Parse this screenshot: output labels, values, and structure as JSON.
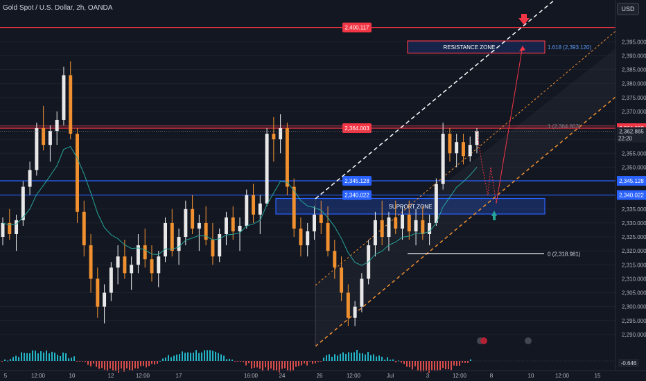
{
  "header": {
    "title": "Gold Spot / U.S. Dollar, 2h, OANDA",
    "currency": "USD"
  },
  "colors": {
    "background": "#131722",
    "up": "#e8e8e8",
    "down": "#f0902f",
    "ma": "#26a69a",
    "red_level": "#f23645",
    "blue_level": "#2962ff",
    "white_level": "#ffffff",
    "orange_channel": "#f0902f",
    "vol_up": "#26c6da",
    "vol_down": "#ef5350"
  },
  "chart_data": {
    "type": "candlestick",
    "ylim": [
      2287,
      2405
    ],
    "y_ticks": [
      "2,395.000",
      "2,390.000",
      "2,385.000",
      "2,380.000",
      "2,375.000",
      "2,370.000",
      "2,365.000",
      "2,360.000",
      "2,355.000",
      "2,350.000",
      "2,345.000",
      "2,340.000",
      "2,335.000",
      "2,330.000",
      "2,325.000",
      "2,320.000",
      "2,315.000",
      "2,310.000",
      "2,305.000",
      "2,300.000",
      "2,295.000",
      "2,290.000"
    ],
    "y_tick_values": [
      2395,
      2390,
      2385,
      2380,
      2375,
      2370,
      2365,
      2360,
      2355,
      2350,
      2345,
      2340,
      2335,
      2330,
      2325,
      2320,
      2315,
      2310,
      2305,
      2300,
      2295,
      2290
    ],
    "x_tick_labels": [
      "5",
      "12:00",
      "10",
      "12",
      "12:00",
      "17",
      "16:00",
      "24",
      "26",
      "12:00",
      "Jul",
      "3",
      "12:00",
      "8",
      "10",
      "12:00",
      "15"
    ],
    "levels": [
      {
        "price": 2400.117,
        "label": "2,400.117",
        "color": "red"
      },
      {
        "price": 2364.003,
        "label": "2,364.003",
        "color": "red"
      },
      {
        "price": 2345.128,
        "label": "2,345.128",
        "color": "blue"
      },
      {
        "price": 2340.022,
        "label": "2,340.022",
        "color": "blue"
      }
    ],
    "axis_tags": [
      {
        "price": 2364.003,
        "label": "2,364.003",
        "color": "red"
      },
      {
        "price": 2345.128,
        "label": "2,345.128",
        "color": "blue"
      },
      {
        "price": 2340.022,
        "label": "2,340.022",
        "color": "blue"
      }
    ],
    "current_price": {
      "price": 2362.865,
      "label": "2,362.865",
      "countdown": "22:20"
    },
    "zones": [
      {
        "name": "RESISTANCE ZONE",
        "top": 2394.3,
        "bottom": 2391.9
      },
      {
        "name": "SUPPORT ZONE",
        "top": 2337.8,
        "bottom": 2334.2
      }
    ],
    "fib_labels": [
      {
        "price": 2393.12,
        "text": "1.618 (2,393.120)"
      },
      {
        "price": 2364.803,
        "text": "1 (2,364.803)"
      },
      {
        "price": 2318.981,
        "text": "0 (2,318.981)"
      }
    ],
    "macd_value": "-0.646",
    "candles": [
      [
        2325,
        2332,
        2322,
        2330
      ],
      [
        2330,
        2335,
        2324,
        2326
      ],
      [
        2326,
        2333,
        2320,
        2331
      ],
      [
        2331,
        2345,
        2329,
        2343
      ],
      [
        2343,
        2352,
        2340,
        2349
      ],
      [
        2349,
        2366,
        2347,
        2364
      ],
      [
        2364,
        2372,
        2356,
        2358
      ],
      [
        2358,
        2365,
        2352,
        2363
      ],
      [
        2363,
        2370,
        2358,
        2367
      ],
      [
        2367,
        2386,
        2365,
        2383
      ],
      [
        2383,
        2388,
        2360,
        2362
      ],
      [
        2362,
        2364,
        2330,
        2334
      ],
      [
        2334,
        2338,
        2318,
        2322
      ],
      [
        2322,
        2326,
        2305,
        2310
      ],
      [
        2310,
        2314,
        2296,
        2300
      ],
      [
        2300,
        2308,
        2294,
        2305
      ],
      [
        2305,
        2316,
        2302,
        2314
      ],
      [
        2314,
        2322,
        2308,
        2318
      ],
      [
        2318,
        2324,
        2310,
        2312
      ],
      [
        2312,
        2318,
        2306,
        2315
      ],
      [
        2315,
        2326,
        2312,
        2322
      ],
      [
        2322,
        2328,
        2314,
        2317
      ],
      [
        2317,
        2322,
        2309,
        2312
      ],
      [
        2312,
        2320,
        2307,
        2318
      ],
      [
        2318,
        2332,
        2316,
        2330
      ],
      [
        2330,
        2335,
        2318,
        2320
      ],
      [
        2320,
        2328,
        2315,
        2325
      ],
      [
        2325,
        2338,
        2322,
        2335
      ],
      [
        2335,
        2340,
        2326,
        2328
      ],
      [
        2328,
        2333,
        2320,
        2330
      ],
      [
        2330,
        2336,
        2322,
        2324
      ],
      [
        2324,
        2330,
        2315,
        2318
      ],
      [
        2318,
        2328,
        2316,
        2326
      ],
      [
        2326,
        2334,
        2322,
        2332
      ],
      [
        2332,
        2336,
        2324,
        2327
      ],
      [
        2327,
        2332,
        2320,
        2329
      ],
      [
        2329,
        2342,
        2328,
        2340
      ],
      [
        2340,
        2344,
        2330,
        2333
      ],
      [
        2333,
        2340,
        2326,
        2337
      ],
      [
        2337,
        2364,
        2336,
        2362
      ],
      [
        2362,
        2368,
        2352,
        2360
      ],
      [
        2360,
        2369,
        2355,
        2364
      ],
      [
        2364,
        2366,
        2340,
        2343
      ],
      [
        2343,
        2346,
        2325,
        2328
      ],
      [
        2328,
        2332,
        2318,
        2322
      ],
      [
        2322,
        2330,
        2318,
        2327
      ],
      [
        2327,
        2336,
        2324,
        2333
      ],
      [
        2333,
        2338,
        2326,
        2330
      ],
      [
        2330,
        2336,
        2318,
        2320
      ],
      [
        2320,
        2324,
        2310,
        2314
      ],
      [
        2314,
        2318,
        2302,
        2305
      ],
      [
        2305,
        2308,
        2293,
        2296
      ],
      [
        2296,
        2302,
        2293,
        2300
      ],
      [
        2300,
        2312,
        2298,
        2310
      ],
      [
        2310,
        2324,
        2308,
        2322
      ],
      [
        2322,
        2334,
        2318,
        2331
      ],
      [
        2331,
        2338,
        2322,
        2325
      ],
      [
        2325,
        2334,
        2320,
        2332
      ],
      [
        2332,
        2338,
        2326,
        2328
      ],
      [
        2328,
        2336,
        2324,
        2333
      ],
      [
        2333,
        2338,
        2324,
        2327
      ],
      [
        2327,
        2335,
        2322,
        2331
      ],
      [
        2331,
        2336,
        2324,
        2326
      ],
      [
        2326,
        2333,
        2322,
        2330
      ],
      [
        2330,
        2346,
        2329,
        2344
      ],
      [
        2344,
        2366,
        2342,
        2362
      ],
      [
        2362,
        2364,
        2352,
        2355
      ],
      [
        2355,
        2362,
        2350,
        2359
      ],
      [
        2359,
        2362,
        2351,
        2354
      ],
      [
        2354,
        2361,
        2352,
        2358
      ],
      [
        2358,
        2364,
        2355,
        2363
      ]
    ]
  }
}
